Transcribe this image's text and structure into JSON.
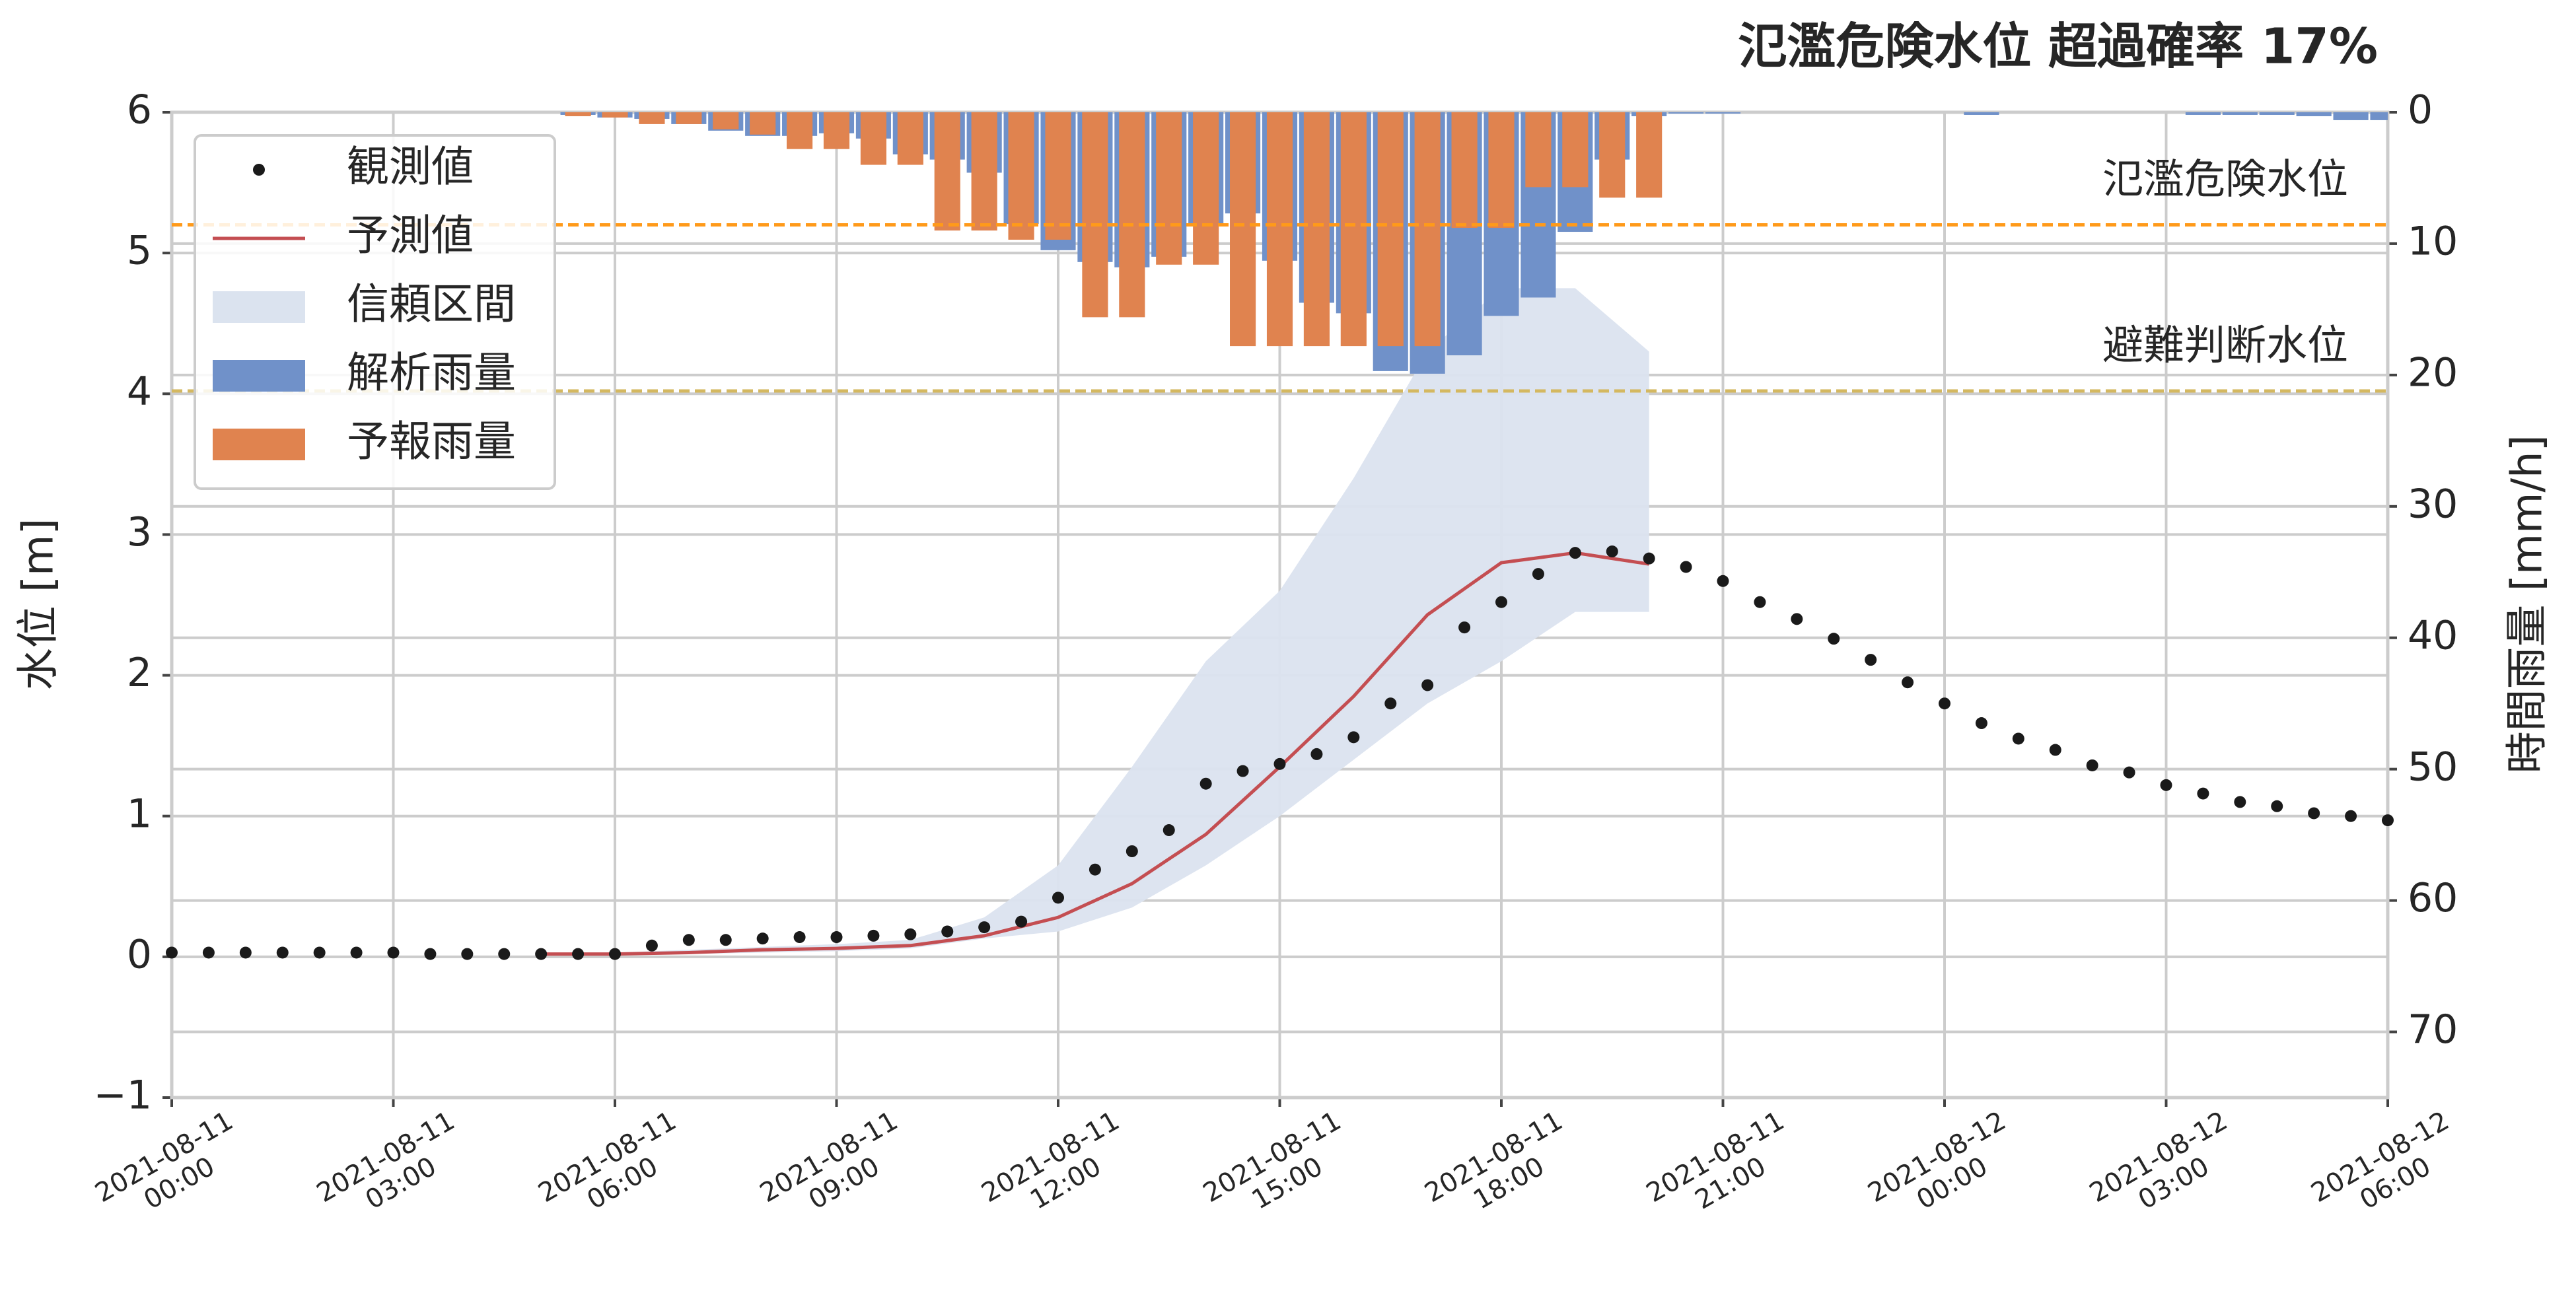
{
  "chart_data": {
    "type": "combo",
    "title": "氾濫危険水位 超過確率 17%",
    "ylabel": "水位 [m]",
    "y2label": "時間雨量 [mm/h]",
    "xlim": [
      "2021-08-11 00:00",
      "2021-08-12 06:00"
    ],
    "xticks": [
      "2021-08-11 00:00",
      "2021-08-11 03:00",
      "2021-08-11 06:00",
      "2021-08-11 09:00",
      "2021-08-11 12:00",
      "2021-08-11 15:00",
      "2021-08-11 18:00",
      "2021-08-11 21:00",
      "2021-08-12 00:00",
      "2021-08-12 03:00",
      "2021-08-12 06:00"
    ],
    "ylim": [
      -1,
      6
    ],
    "yticks": [
      {
        "value": -1,
        "label": "−1"
      },
      0,
      1,
      2,
      3,
      4,
      5,
      6
    ],
    "y2lim": [
      75,
      0
    ],
    "y2ticks": [
      0,
      10,
      20,
      30,
      40,
      50,
      60,
      70
    ],
    "grid": true,
    "legend": "upper left",
    "hlines": [
      {
        "value": 5.2,
        "label": "氾濫危険水位",
        "color": "#ff9a1a"
      },
      {
        "value": 4.02,
        "label": "避難判断水位",
        "color": "#d4b860"
      }
    ],
    "series": [
      {
        "name": "観測値",
        "kind": "scatter",
        "color": "#1a1a1a",
        "x": [
          "2021-08-11 00:00",
          "2021-08-11 00:30",
          "2021-08-11 01:00",
          "2021-08-11 01:30",
          "2021-08-11 02:00",
          "2021-08-11 02:30",
          "2021-08-11 03:00",
          "2021-08-11 03:30",
          "2021-08-11 04:00",
          "2021-08-11 04:30",
          "2021-08-11 05:00",
          "2021-08-11 05:30",
          "2021-08-11 06:00",
          "2021-08-11 06:30",
          "2021-08-11 07:00",
          "2021-08-11 07:30",
          "2021-08-11 08:00",
          "2021-08-11 08:30",
          "2021-08-11 09:00",
          "2021-08-11 09:30",
          "2021-08-11 10:00",
          "2021-08-11 10:30",
          "2021-08-11 11:00",
          "2021-08-11 11:30",
          "2021-08-11 12:00",
          "2021-08-11 12:30",
          "2021-08-11 13:00",
          "2021-08-11 13:30",
          "2021-08-11 14:00",
          "2021-08-11 14:30",
          "2021-08-11 15:00",
          "2021-08-11 15:30",
          "2021-08-11 16:00",
          "2021-08-11 16:30",
          "2021-08-11 17:00",
          "2021-08-11 17:30",
          "2021-08-11 18:00",
          "2021-08-11 18:30",
          "2021-08-11 19:00",
          "2021-08-11 19:30",
          "2021-08-11 20:00",
          "2021-08-11 20:30",
          "2021-08-11 21:00",
          "2021-08-11 21:30",
          "2021-08-11 22:00",
          "2021-08-11 22:30",
          "2021-08-11 23:00",
          "2021-08-11 23:30",
          "2021-08-12 00:00",
          "2021-08-12 00:30",
          "2021-08-12 01:00",
          "2021-08-12 01:30",
          "2021-08-12 02:00",
          "2021-08-12 02:30",
          "2021-08-12 03:00",
          "2021-08-12 03:30",
          "2021-08-12 04:00",
          "2021-08-12 04:30",
          "2021-08-12 05:00",
          "2021-08-12 05:30",
          "2021-08-12 06:00"
        ],
        "values": [
          0.03,
          0.03,
          0.03,
          0.03,
          0.03,
          0.03,
          0.03,
          0.02,
          0.02,
          0.02,
          0.02,
          0.02,
          0.02,
          0.08,
          0.12,
          0.12,
          0.13,
          0.14,
          0.14,
          0.15,
          0.16,
          0.18,
          0.21,
          0.25,
          0.42,
          0.62,
          0.75,
          0.9,
          1.23,
          1.32,
          1.37,
          1.44,
          1.56,
          1.8,
          1.93,
          2.34,
          2.52,
          2.72,
          2.87,
          2.88,
          2.83,
          2.77,
          2.67,
          2.52,
          2.4,
          2.26,
          2.11,
          1.95,
          1.8,
          1.66,
          1.55,
          1.47,
          1.36,
          1.31,
          1.22,
          1.16,
          1.1,
          1.07,
          1.02,
          1.0,
          0.97
        ]
      },
      {
        "name": "予測値",
        "kind": "line",
        "color": "#c44e52",
        "x": [
          "2021-08-11 05:00",
          "2021-08-11 06:00",
          "2021-08-11 07:00",
          "2021-08-11 08:00",
          "2021-08-11 09:00",
          "2021-08-11 10:00",
          "2021-08-11 11:00",
          "2021-08-11 12:00",
          "2021-08-11 13:00",
          "2021-08-11 14:00",
          "2021-08-11 15:00",
          "2021-08-11 16:00",
          "2021-08-11 17:00",
          "2021-08-11 18:00",
          "2021-08-11 19:00",
          "2021-08-11 20:00"
        ],
        "values": [
          0.02,
          0.02,
          0.03,
          0.05,
          0.06,
          0.08,
          0.15,
          0.28,
          0.52,
          0.87,
          1.35,
          1.85,
          2.43,
          2.8,
          2.87,
          2.79
        ]
      },
      {
        "name": "信頼区間",
        "kind": "band",
        "color": "#dbe3ef",
        "x": [
          "2021-08-11 05:00",
          "2021-08-11 06:00",
          "2021-08-11 07:00",
          "2021-08-11 08:00",
          "2021-08-11 09:00",
          "2021-08-11 10:00",
          "2021-08-11 11:00",
          "2021-08-11 12:00",
          "2021-08-11 13:00",
          "2021-08-11 14:00",
          "2021-08-11 15:00",
          "2021-08-11 16:00",
          "2021-08-11 17:00",
          "2021-08-11 18:00",
          "2021-08-11 19:00",
          "2021-08-11 20:00"
        ],
        "upper": [
          0.03,
          0.03,
          0.05,
          0.07,
          0.09,
          0.12,
          0.28,
          0.65,
          1.35,
          2.1,
          2.6,
          3.4,
          4.3,
          4.75,
          4.75,
          4.3
        ],
        "lower": [
          0.01,
          0.01,
          0.02,
          0.03,
          0.04,
          0.06,
          0.13,
          0.18,
          0.35,
          0.65,
          1.0,
          1.4,
          1.8,
          2.1,
          2.45,
          2.45
        ]
      },
      {
        "name": "解析雨量",
        "kind": "bar",
        "axis": "y2",
        "color": "#7091c9",
        "x": [
          "2021-08-11 05:30",
          "2021-08-11 06:00",
          "2021-08-11 06:30",
          "2021-08-11 07:00",
          "2021-08-11 07:30",
          "2021-08-11 08:00",
          "2021-08-11 08:30",
          "2021-08-11 09:00",
          "2021-08-11 09:30",
          "2021-08-11 10:00",
          "2021-08-11 10:30",
          "2021-08-11 11:00",
          "2021-08-11 11:30",
          "2021-08-11 12:00",
          "2021-08-11 12:30",
          "2021-08-11 13:00",
          "2021-08-11 13:30",
          "2021-08-11 14:00",
          "2021-08-11 14:30",
          "2021-08-11 15:00",
          "2021-08-11 15:30",
          "2021-08-11 16:00",
          "2021-08-11 16:30",
          "2021-08-11 17:00",
          "2021-08-11 17:30",
          "2021-08-11 18:00",
          "2021-08-11 18:30",
          "2021-08-11 19:00",
          "2021-08-11 19:30",
          "2021-08-11 20:00",
          "2021-08-11 20:30",
          "2021-08-11 21:00",
          "2021-08-12 00:30",
          "2021-08-12 03:30",
          "2021-08-12 04:00",
          "2021-08-12 04:30",
          "2021-08-12 05:00",
          "2021-08-12 05:30",
          "2021-08-12 06:00"
        ],
        "values": [
          0.2,
          0.4,
          0.5,
          0.9,
          1.4,
          1.8,
          1.8,
          1.6,
          2.0,
          3.2,
          3.6,
          4.6,
          8.5,
          10.5,
          11.4,
          11.8,
          11.0,
          8.5,
          7.7,
          11.3,
          14.5,
          15.3,
          19.7,
          19.9,
          18.5,
          15.5,
          14.1,
          9.1,
          3.6,
          0.3,
          0.1,
          0.1,
          0.2,
          0.2,
          0.2,
          0.2,
          0.3,
          0.6,
          0.6
        ]
      },
      {
        "name": "予報雨量",
        "kind": "bar",
        "axis": "y2",
        "color": "#e0834f",
        "x": [
          "2021-08-11 05:30",
          "2021-08-11 06:00",
          "2021-08-11 06:30",
          "2021-08-11 07:00",
          "2021-08-11 07:30",
          "2021-08-11 08:00",
          "2021-08-11 08:30",
          "2021-08-11 09:00",
          "2021-08-11 09:30",
          "2021-08-11 10:00",
          "2021-08-11 10:30",
          "2021-08-11 11:00",
          "2021-08-11 11:30",
          "2021-08-11 12:00",
          "2021-08-11 12:30",
          "2021-08-11 13:00",
          "2021-08-11 13:30",
          "2021-08-11 14:00",
          "2021-08-11 14:30",
          "2021-08-11 15:00",
          "2021-08-11 15:30",
          "2021-08-11 16:00",
          "2021-08-11 16:30",
          "2021-08-11 17:00",
          "2021-08-11 17:30",
          "2021-08-11 18:00",
          "2021-08-11 18:30",
          "2021-08-11 19:00",
          "2021-08-11 19:30",
          "2021-08-11 20:00"
        ],
        "values": [
          0.3,
          0.4,
          0.9,
          0.9,
          1.3,
          1.7,
          2.8,
          2.8,
          4.0,
          4.0,
          9.0,
          9.0,
          9.7,
          9.7,
          15.6,
          15.6,
          11.6,
          11.6,
          17.8,
          17.8,
          17.8,
          17.8,
          17.8,
          17.8,
          8.8,
          8.8,
          5.7,
          5.7,
          6.5,
          6.5
        ]
      }
    ]
  }
}
